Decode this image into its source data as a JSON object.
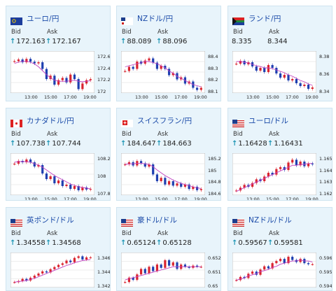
{
  "colors": {
    "card_bg": "#e8f4fb",
    "title": "#1a4aa8",
    "up_arrow": "#1e96b4",
    "candle_up": "#d9242f",
    "candle_down": "#1e3fb0",
    "ma": "#c040c0"
  },
  "labels": {
    "bid": "Bid",
    "ask": "Ask",
    "up_icon": "arrow-up-icon"
  },
  "cards": [
    {
      "title": "ユーロ/円",
      "flag": "eu",
      "bid": "172.163",
      "ask": "172.167",
      "show_bid_arrow": true,
      "show_ask_arrow": true,
      "y_ticks": [
        "172.6",
        "172.4",
        "172.2",
        "172"
      ],
      "x_ticks": [
        "13:00",
        "15:00",
        "17:00",
        "19:00"
      ],
      "chart_data": {
        "type": "candlestick",
        "trend": [
          172.52,
          172.55,
          172.5,
          172.56,
          172.51,
          172.48,
          172.5,
          172.38,
          172.2,
          172.26,
          172.1,
          172.18,
          172.22,
          172.14,
          172.28,
          172.2,
          172.02,
          172.12,
          172.18,
          172.2
        ],
        "ma": [
          172.48,
          172.5,
          172.52,
          172.52,
          172.5,
          172.47,
          172.42,
          172.35,
          172.28,
          172.22,
          172.18,
          172.16,
          172.16,
          172.16,
          172.17,
          172.18,
          172.16,
          172.15,
          172.16,
          172.17
        ],
        "ylim": [
          171.95,
          172.7
        ]
      }
    },
    {
      "title": "NZドル/円",
      "flag": "nz",
      "bid": "88.089",
      "ask": "88.096",
      "show_bid_arrow": true,
      "show_ask_arrow": true,
      "y_ticks": [
        "88.4",
        "88.3",
        "88.2",
        "88.1"
      ],
      "x_ticks": [
        "13:00",
        "15:00",
        "17:00",
        "19:00"
      ],
      "chart_data": {
        "type": "candlestick",
        "trend": [
          88.26,
          88.3,
          88.28,
          88.35,
          88.33,
          88.36,
          88.38,
          88.34,
          88.28,
          88.31,
          88.28,
          88.22,
          88.24,
          88.18,
          88.2,
          88.14,
          88.16,
          88.1,
          88.08,
          88.1
        ],
        "ma": [
          88.3,
          88.31,
          88.32,
          88.33,
          88.34,
          88.35,
          88.35,
          88.34,
          88.33,
          88.31,
          88.29,
          88.26,
          88.24,
          88.21,
          88.19,
          88.17,
          88.15,
          88.13,
          88.12,
          88.11
        ],
        "ylim": [
          88.05,
          88.45
        ]
      }
    },
    {
      "title": "ランド/円",
      "flag": "za",
      "bid": "8.335",
      "ask": "8.344",
      "show_bid_arrow": false,
      "show_ask_arrow": false,
      "y_ticks": [
        "8.38",
        "8.36",
        "8.34"
      ],
      "x_ticks": [
        "13:00",
        "15:00",
        "17:00",
        "19:00"
      ],
      "chart_data": {
        "type": "candlestick",
        "trend": [
          8.372,
          8.376,
          8.371,
          8.374,
          8.368,
          8.362,
          8.366,
          8.36,
          8.37,
          8.366,
          8.358,
          8.352,
          8.356,
          8.348,
          8.35,
          8.344,
          8.34,
          8.342,
          8.336,
          8.338
        ],
        "ma": [
          8.375,
          8.375,
          8.374,
          8.373,
          8.371,
          8.369,
          8.368,
          8.366,
          8.366,
          8.365,
          8.363,
          8.361,
          8.359,
          8.356,
          8.354,
          8.351,
          8.348,
          8.346,
          8.343,
          8.341
        ],
        "ylim": [
          8.33,
          8.39
        ]
      }
    },
    {
      "title": "カナダドル/円",
      "flag": "ca",
      "bid": "107.738",
      "ask": "107.744",
      "show_bid_arrow": true,
      "show_ask_arrow": true,
      "y_ticks": [
        "108.2",
        "108",
        "107.8"
      ],
      "x_ticks": [
        "13:00",
        "15:00",
        "17:00",
        "19:00"
      ],
      "chart_data": {
        "type": "candlestick",
        "trend": [
          108.1,
          108.14,
          108.12,
          108.16,
          108.12,
          108.06,
          108.08,
          107.96,
          107.88,
          107.92,
          107.82,
          107.86,
          107.78,
          107.8,
          107.74,
          107.78,
          107.72,
          107.76,
          107.73,
          107.74
        ],
        "ma": [
          108.12,
          108.13,
          108.13,
          108.13,
          108.12,
          108.1,
          108.08,
          108.05,
          108.01,
          107.97,
          107.93,
          107.9,
          107.87,
          107.84,
          107.81,
          107.79,
          107.77,
          107.76,
          107.75,
          107.74
        ],
        "ylim": [
          107.65,
          108.25
        ]
      }
    },
    {
      "title": "スイスフラン/円",
      "flag": "ch",
      "bid": "184.647",
      "ask": "184.663",
      "show_bid_arrow": true,
      "show_ask_arrow": true,
      "y_ticks": [
        "185.2",
        "185",
        "184.8",
        "184.6"
      ],
      "x_ticks": [
        "13:00",
        "15:00",
        "17:00",
        "19:00"
      ],
      "chart_data": {
        "type": "candlestick",
        "trend": [
          185.1,
          185.14,
          185.08,
          185.16,
          185.12,
          185.06,
          185.1,
          184.92,
          184.8,
          184.86,
          184.74,
          184.8,
          184.72,
          184.76,
          184.7,
          184.74,
          184.66,
          184.7,
          184.64,
          184.66
        ],
        "ma": [
          185.1,
          185.11,
          185.11,
          185.12,
          185.12,
          185.11,
          185.1,
          185.06,
          185.0,
          184.95,
          184.9,
          184.86,
          184.82,
          184.79,
          184.76,
          184.74,
          184.72,
          184.7,
          184.68,
          184.67
        ],
        "ylim": [
          184.55,
          185.3
        ]
      }
    },
    {
      "title": "ユーロ/ドル",
      "flag": "euus",
      "bid": "1.16428",
      "ask": "1.16431",
      "show_bid_arrow": true,
      "show_ask_arrow": true,
      "y_ticks": [
        "1.165",
        "1.164",
        "1.163",
        "1.162"
      ],
      "x_ticks": [
        "13:00",
        "15:00",
        "17:00",
        "19:00"
      ],
      "chart_data": {
        "type": "candlestick",
        "trend": [
          1.1615,
          1.1618,
          1.1621,
          1.1619,
          1.1623,
          1.1627,
          1.1625,
          1.163,
          1.1634,
          1.1632,
          1.1638,
          1.164,
          1.1637,
          1.1645,
          1.1648,
          1.1642,
          1.1646,
          1.1641,
          1.1644,
          1.1643
        ],
        "ma": [
          1.1614,
          1.1616,
          1.1618,
          1.162,
          1.1622,
          1.1624,
          1.1626,
          1.1628,
          1.163,
          1.1632,
          1.1634,
          1.1636,
          1.1638,
          1.164,
          1.1642,
          1.1642,
          1.1643,
          1.1643,
          1.1644,
          1.1644
        ],
        "ylim": [
          1.161,
          1.1655
        ]
      }
    },
    {
      "title": "英ポンド/ドル",
      "flag": "gbus",
      "bid": "1.34558",
      "ask": "1.34568",
      "show_bid_arrow": true,
      "show_ask_arrow": true,
      "y_ticks": [
        "1.346",
        "1.344",
        "1.342"
      ],
      "x_ticks": [],
      "chart_data": {
        "type": "candlestick",
        "trend": [
          1.341,
          1.3412,
          1.3416,
          1.3413,
          1.3418,
          1.3422,
          1.3426,
          1.343,
          1.3428,
          1.3434,
          1.3438,
          1.3442,
          1.3445,
          1.345,
          1.3447,
          1.3455,
          1.3458,
          1.3452,
          1.3456,
          1.3456
        ],
        "ma": [
          1.341,
          1.3411,
          1.3412,
          1.3413,
          1.3415,
          1.3417,
          1.342,
          1.3423,
          1.3426,
          1.3429,
          1.3432,
          1.3435,
          1.3438,
          1.3441,
          1.3443,
          1.3446,
          1.3448,
          1.345,
          1.3451,
          1.3452
        ],
        "ylim": [
          1.34,
          1.3465
        ]
      }
    },
    {
      "title": "豪ドル/ドル",
      "flag": "auus",
      "bid": "0.65124",
      "ask": "0.65128",
      "show_bid_arrow": true,
      "show_ask_arrow": true,
      "y_ticks": [
        "0.652",
        "0.651",
        "0.65"
      ],
      "x_ticks": [],
      "chart_data": {
        "type": "candlestick",
        "trend": [
          0.6498,
          0.6502,
          0.65,
          0.6505,
          0.651,
          0.6506,
          0.6512,
          0.6508,
          0.6514,
          0.6511,
          0.6518,
          0.6513,
          0.6516,
          0.651,
          0.6514,
          0.6512,
          0.6511,
          0.6513,
          0.6512,
          0.6512
        ],
        "ma": [
          0.65,
          0.6501,
          0.6502,
          0.6503,
          0.6504,
          0.6505,
          0.6506,
          0.6507,
          0.6508,
          0.6509,
          0.651,
          0.6511,
          0.6512,
          0.6512,
          0.6512,
          0.6512,
          0.6512,
          0.6512,
          0.6512,
          0.6512
        ],
        "ylim": [
          0.6493,
          0.6525
        ]
      }
    },
    {
      "title": "NZドル/ドル",
      "flag": "nzus",
      "bid": "0.59567",
      "ask": "0.59581",
      "show_bid_arrow": true,
      "show_ask_arrow": true,
      "y_ticks": [
        "0.596",
        "0.595",
        "0.594"
      ],
      "x_ticks": [],
      "chart_data": {
        "type": "candlestick",
        "trend": [
          0.5942,
          0.5945,
          0.5944,
          0.5948,
          0.595,
          0.5947,
          0.5952,
          0.5955,
          0.5953,
          0.5958,
          0.596,
          0.5962,
          0.5958,
          0.5964,
          0.5961,
          0.5959,
          0.5962,
          0.5958,
          0.5957,
          0.5957
        ],
        "ma": [
          0.5942,
          0.5943,
          0.5944,
          0.5946,
          0.5947,
          0.5948,
          0.595,
          0.5951,
          0.5952,
          0.5954,
          0.5955,
          0.5957,
          0.5958,
          0.5959,
          0.596,
          0.596,
          0.5961,
          0.596,
          0.596,
          0.5959
        ],
        "ylim": [
          0.5935,
          0.5968
        ]
      }
    }
  ]
}
